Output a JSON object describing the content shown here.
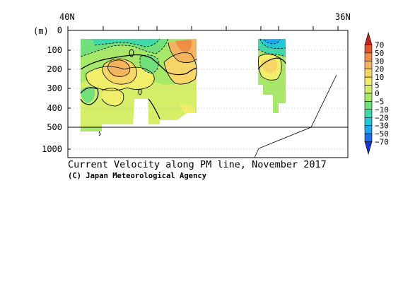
{
  "chart_data": {
    "type": "heatmap",
    "title": "Current Velocity along PM line, November 2017",
    "credit": "(C) Japan Meteorological Agency",
    "x_axis": {
      "tick_labels": [
        "40N",
        "36N"
      ],
      "range": [
        "40N",
        "36N"
      ]
    },
    "y_axis": {
      "unit_label": "(m)",
      "upper_panel": {
        "ticks": [
          0,
          100,
          200,
          300,
          400,
          500
        ],
        "range": [
          0,
          500
        ]
      },
      "lower_panel": {
        "ticks": [
          1000
        ],
        "range": [
          500,
          1400
        ]
      }
    },
    "colorbar": {
      "levels": [
        -70,
        -50,
        -30,
        -20,
        -10,
        -5,
        0,
        5,
        10,
        20,
        30,
        50,
        70
      ],
      "labels": [
        "70",
        "50",
        "30",
        "20",
        "10",
        "5",
        "0",
        "−5",
        "−10",
        "−20",
        "−30",
        "−50",
        "−70"
      ],
      "colors": [
        "#1f2fd6",
        "#1f6fe6",
        "#1fa7f0",
        "#22c8d8",
        "#3fd8a8",
        "#6fe07a",
        "#a8e868",
        "#d4ee68",
        "#f1ee6a",
        "#f7d668",
        "#f4b45e",
        "#ef8d45",
        "#e3562d",
        "#c8221c"
      ]
    },
    "grid": true
  }
}
